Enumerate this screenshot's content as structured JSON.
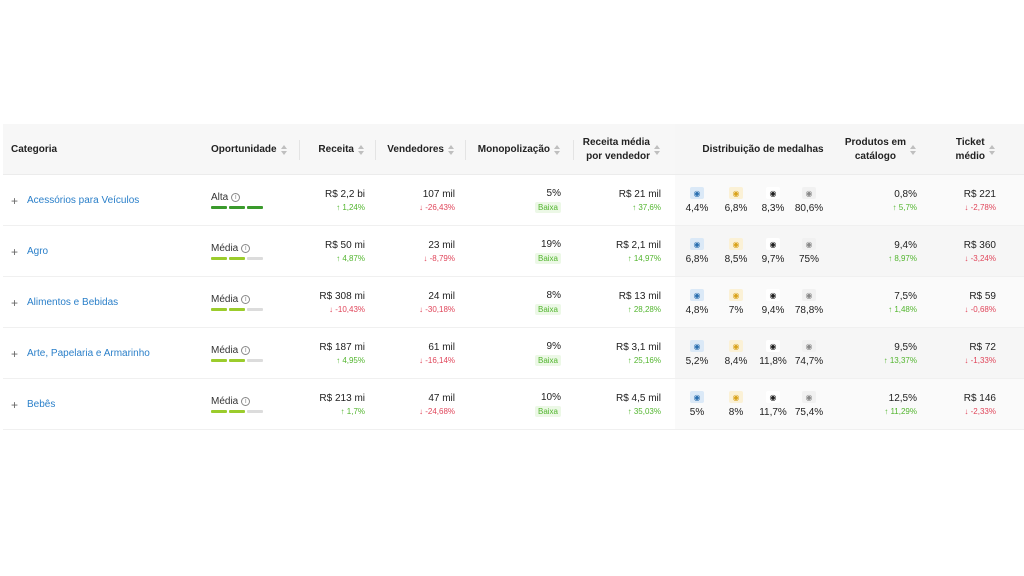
{
  "headers": {
    "categoria": "Categoria",
    "oportunidade": "Oportunidade",
    "receita": "Receita",
    "vendedores": "Vendedores",
    "monopolizacao": "Monopolização",
    "receita_media_1": "Receita média",
    "receita_media_2": "por vendedor",
    "medalhas": "Distribuição de medalhas",
    "produtos_1": "Produtos em",
    "produtos_2": "catálogo",
    "ticket_1": "Ticket",
    "ticket_2": "médio"
  },
  "rows": [
    {
      "categoria": "Acessórios para Veículos",
      "oportunidade": "Alta",
      "oportunidade_level": 3,
      "receita": "R$ 2,2 bi",
      "receita_delta": "1,24%",
      "receita_dir": "up",
      "vendedores": "107 mil",
      "vendedores_delta": "-26,43%",
      "vendedores_dir": "down",
      "monopolizacao": "5%",
      "monopolizacao_badge": "Baixa",
      "receita_media": "R$ 21 mil",
      "receita_media_delta": "37,6%",
      "receita_media_dir": "up",
      "medalhas": [
        "4,4%",
        "6,8%",
        "8,3%",
        "80,6%"
      ],
      "produtos": "0,8%",
      "produtos_delta": "5,7%",
      "produtos_dir": "up",
      "ticket": "R$ 221",
      "ticket_delta": "-2,78%",
      "ticket_dir": "down"
    },
    {
      "categoria": "Agro",
      "oportunidade": "Média",
      "oportunidade_level": 2,
      "receita": "R$ 50 mi",
      "receita_delta": "4,87%",
      "receita_dir": "up",
      "vendedores": "23 mil",
      "vendedores_delta": "-8,79%",
      "vendedores_dir": "down",
      "monopolizacao": "19%",
      "monopolizacao_badge": "Baixa",
      "receita_media": "R$ 2,1 mil",
      "receita_media_delta": "14,97%",
      "receita_media_dir": "up",
      "medalhas": [
        "6,8%",
        "8,5%",
        "9,7%",
        "75%"
      ],
      "produtos": "9,4%",
      "produtos_delta": "8,97%",
      "produtos_dir": "up",
      "ticket": "R$ 360",
      "ticket_delta": "-3,24%",
      "ticket_dir": "down"
    },
    {
      "categoria": "Alimentos e Bebidas",
      "oportunidade": "Média",
      "oportunidade_level": 2,
      "receita": "R$ 308 mi",
      "receita_delta": "-10,43%",
      "receita_dir": "down",
      "vendedores": "24 mil",
      "vendedores_delta": "-30,18%",
      "vendedores_dir": "down",
      "monopolizacao": "8%",
      "monopolizacao_badge": "Baixa",
      "receita_media": "R$ 13 mil",
      "receita_media_delta": "28,28%",
      "receita_media_dir": "up",
      "medalhas": [
        "4,8%",
        "7%",
        "9,4%",
        "78,8%"
      ],
      "produtos": "7,5%",
      "produtos_delta": "1,48%",
      "produtos_dir": "up",
      "ticket": "R$ 59",
      "ticket_delta": "-0,68%",
      "ticket_dir": "down"
    },
    {
      "categoria": "Arte, Papelaria e Armarinho",
      "oportunidade": "Média",
      "oportunidade_level": 2,
      "receita": "R$ 187 mi",
      "receita_delta": "4,95%",
      "receita_dir": "up",
      "vendedores": "61 mil",
      "vendedores_delta": "-16,14%",
      "vendedores_dir": "down",
      "monopolizacao": "9%",
      "monopolizacao_badge": "Baixa",
      "receita_media": "R$ 3,1 mil",
      "receita_media_delta": "25,16%",
      "receita_media_dir": "up",
      "medalhas": [
        "5,2%",
        "8,4%",
        "11,8%",
        "74,7%"
      ],
      "produtos": "9,5%",
      "produtos_delta": "13,37%",
      "produtos_dir": "up",
      "ticket": "R$ 72",
      "ticket_delta": "-1,33%",
      "ticket_dir": "down"
    },
    {
      "categoria": "Bebês",
      "oportunidade": "Média",
      "oportunidade_level": 2,
      "receita": "R$ 213 mi",
      "receita_delta": "1,7%",
      "receita_dir": "up",
      "vendedores": "47 mil",
      "vendedores_delta": "-24,68%",
      "vendedores_dir": "down",
      "monopolizacao": "10%",
      "monopolizacao_badge": "Baixa",
      "receita_media": "R$ 4,5 mil",
      "receita_media_delta": "35,03%",
      "receita_media_dir": "up",
      "medalhas": [
        "5%",
        "8%",
        "11,7%",
        "75,4%"
      ],
      "produtos": "12,5%",
      "produtos_delta": "11,29%",
      "produtos_dir": "up",
      "ticket": "R$ 146",
      "ticket_delta": "-2,33%",
      "ticket_dir": "down"
    }
  ],
  "medal_icons": [
    "medal-blue-icon",
    "medal-gold-icon",
    "medal-black-icon",
    "medal-silver-icon"
  ],
  "colors": {
    "link": "#2a7fc9",
    "up": "#52b52e",
    "down": "#e0455a",
    "alta": "#3a9a2c",
    "media": "#9bcc2c"
  }
}
